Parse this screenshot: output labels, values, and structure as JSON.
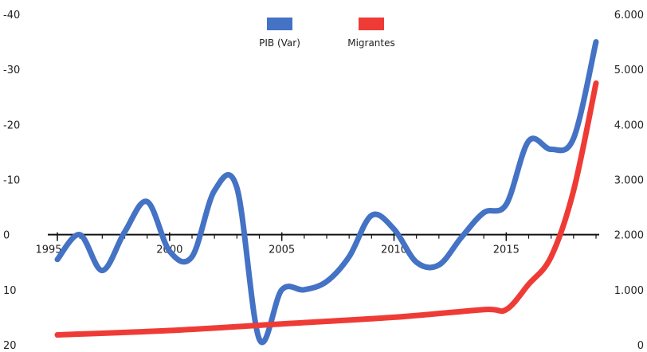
{
  "chart_data": {
    "type": "line",
    "title": "",
    "grid": false,
    "legend_position": "top-center",
    "x_axis": {
      "ticks": [
        1995,
        2000,
        2005,
        2010,
        2015
      ],
      "range": [
        1994.5,
        2019.3
      ]
    },
    "y_left": {
      "inverted": true,
      "range": [
        -40,
        20
      ],
      "ticks": [
        -40,
        -30,
        -20,
        -10,
        0,
        10,
        20
      ],
      "tick_labels": [
        "-40",
        "-30",
        "-20",
        "-10",
        "0",
        "10",
        "20"
      ]
    },
    "y_right": {
      "range": [
        0,
        6000
      ],
      "ticks": [
        0,
        1000,
        2000,
        3000,
        4000,
        5000,
        6000
      ],
      "tick_labels": [
        "0",
        "1.000",
        "2.000",
        "3.000",
        "4.000",
        "5.000",
        "6.000"
      ]
    },
    "series": [
      {
        "name": "PIB (Var)",
        "color": "#4472c4",
        "axis": "left",
        "x": [
          1995,
          1996,
          1997,
          1998,
          1999,
          2000,
          2001,
          2002,
          2003,
          2004,
          2005,
          2006,
          2007,
          2008,
          2009,
          2010,
          2011,
          2012,
          2013,
          2014,
          2015,
          2016,
          2017,
          2018,
          2019
        ],
        "values": [
          4.5,
          0.0,
          6.5,
          -0.5,
          -6.0,
          3.0,
          4.0,
          -8.0,
          -8.5,
          19.0,
          10.0,
          10.0,
          8.5,
          4.0,
          -3.5,
          -1.0,
          5.0,
          5.5,
          0.5,
          -4.0,
          -5.5,
          -17.0,
          -15.5,
          -17.5,
          -35.0
        ]
      },
      {
        "name": "Migrantes",
        "color": "#ef3b36",
        "axis": "right",
        "x": [
          1995,
          2000,
          2005,
          2010,
          2014,
          2015,
          2016,
          2017,
          2018,
          2019
        ],
        "values": [
          180,
          260,
          380,
          500,
          640,
          640,
          1100,
          1600,
          2800,
          4750
        ]
      }
    ]
  }
}
